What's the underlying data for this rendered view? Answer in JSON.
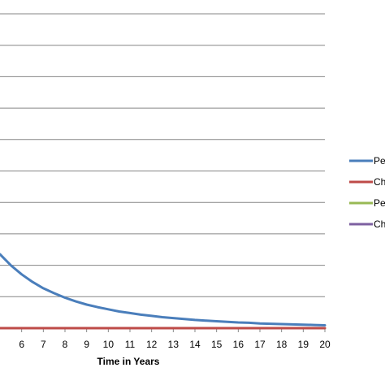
{
  "chart_data": {
    "type": "line",
    "title": "",
    "xlabel": "Time in Years",
    "ylabel": "",
    "x_ticks": [
      6,
      7,
      8,
      9,
      10,
      11,
      12,
      13,
      14,
      15,
      16,
      17,
      18,
      19,
      20
    ],
    "xlim": [
      5,
      20
    ],
    "grid": "horizontal",
    "legend_position": "right",
    "series": [
      {
        "name": "Pe",
        "color": "#4a7ebb",
        "x": [
          5,
          5.5,
          6,
          6.5,
          7,
          7.5,
          8,
          8.5,
          9,
          9.5,
          10,
          10.5,
          11,
          11.5,
          12,
          12.5,
          13,
          13.5,
          14,
          14.5,
          15,
          15.5,
          16,
          16.5,
          17,
          17.5,
          18,
          18.5,
          19,
          19.5,
          20
        ],
        "y": [
          0.235,
          0.2,
          0.171,
          0.147,
          0.127,
          0.111,
          0.097,
          0.085,
          0.075,
          0.067,
          0.06,
          0.053,
          0.048,
          0.043,
          0.039,
          0.035,
          0.032,
          0.029,
          0.026,
          0.024,
          0.022,
          0.02,
          0.018,
          0.017,
          0.015,
          0.014,
          0.013,
          0.012,
          0.011,
          0.01,
          0.009
        ]
      },
      {
        "name": "Ch",
        "color": "#be4b48",
        "x": [
          5,
          20
        ],
        "y": [
          0,
          0
        ]
      },
      {
        "name": "Pe",
        "color": "#98b954",
        "x": [],
        "y": []
      },
      {
        "name": "Ch",
        "color": "#7d60a0",
        "x": [],
        "y": []
      }
    ]
  }
}
